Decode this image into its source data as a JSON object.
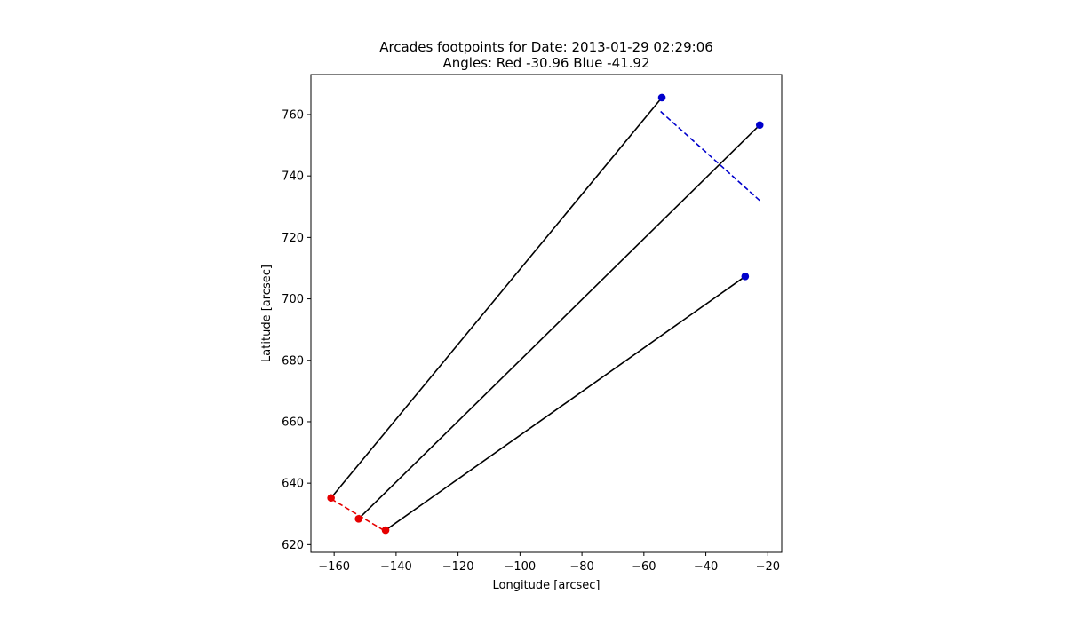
{
  "chart_data": {
    "type": "scatter",
    "title_line1": "Arcades footpoints for Date: 2013-01-29 02:29:06",
    "title_line2": "Angles: Red -30.96 Blue -41.92",
    "xlabel": "Longitude [arcsec]",
    "ylabel": "Latitude [arcsec]",
    "xlim": [
      -167.5,
      -15.5
    ],
    "ylim": [
      617.5,
      773.0
    ],
    "xticks": [
      -160,
      -140,
      -120,
      -100,
      -80,
      -60,
      -40,
      -20
    ],
    "yticks": [
      620,
      640,
      660,
      680,
      700,
      720,
      740,
      760
    ],
    "grid": false,
    "colors": {
      "red": "#e60000",
      "blue": "#0000cc",
      "line": "#000000"
    },
    "red_points": [
      {
        "x": -161.0,
        "y": 635.2
      },
      {
        "x": -152.1,
        "y": 628.4
      },
      {
        "x": -143.4,
        "y": 624.7
      }
    ],
    "blue_points": [
      {
        "x": -54.2,
        "y": 765.5
      },
      {
        "x": -22.6,
        "y": 756.6
      },
      {
        "x": -27.3,
        "y": 707.3
      }
    ],
    "arcades": [
      {
        "from": {
          "x": -161.0,
          "y": 635.2
        },
        "to": {
          "x": -54.2,
          "y": 765.5
        }
      },
      {
        "from": {
          "x": -152.1,
          "y": 628.4
        },
        "to": {
          "x": -22.6,
          "y": 756.6
        }
      },
      {
        "from": {
          "x": -143.4,
          "y": 624.7
        },
        "to": {
          "x": -27.3,
          "y": 707.3
        }
      }
    ],
    "red_fit_line": {
      "from": {
        "x": -161.0,
        "y": 634.9
      },
      "to": {
        "x": -143.4,
        "y": 624.3
      }
    },
    "blue_fit_line": {
      "from": {
        "x": -54.6,
        "y": 761.0
      },
      "to": {
        "x": -22.6,
        "y": 732.0
      }
    }
  }
}
